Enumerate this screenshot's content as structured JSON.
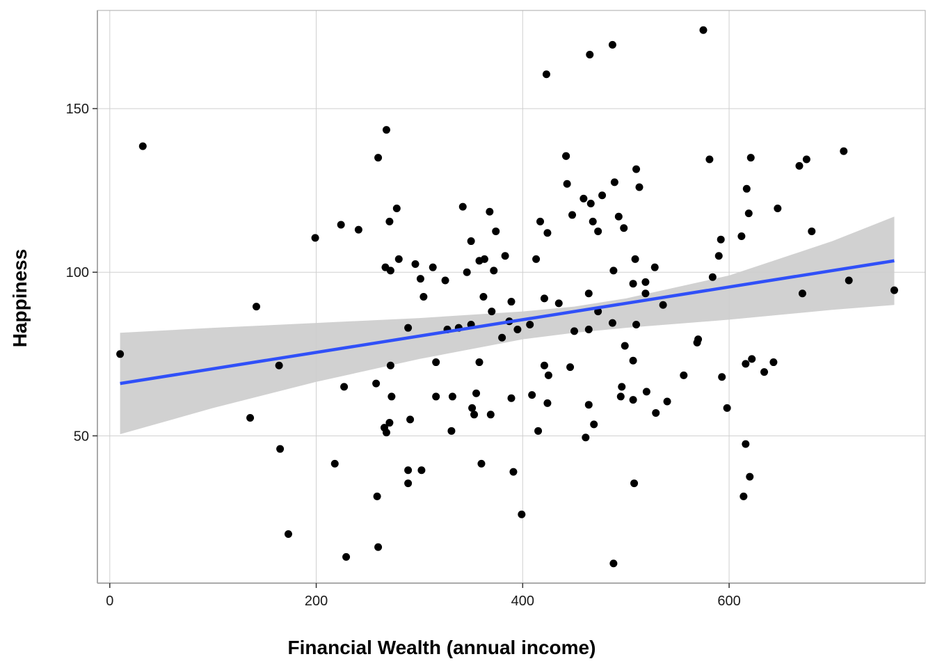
{
  "chart_data": {
    "type": "scatter",
    "title": "",
    "xlabel": "Financial Wealth (annual income)",
    "ylabel": "Happiness",
    "xlim": [
      -12,
      790
    ],
    "ylim": [
      5,
      180
    ],
    "x_ticks": [
      0,
      200,
      400,
      600
    ],
    "x_tick_labels": [
      "0",
      "200",
      "400",
      "600"
    ],
    "y_ticks": [
      50,
      100,
      150
    ],
    "y_tick_labels": [
      "50",
      "100",
      "150"
    ],
    "grid": true,
    "legend": "none",
    "colors": {
      "points": "#000000",
      "line": "#3050F8",
      "band": "#CCCCCC",
      "grid": "#CFCFCF",
      "frame": "#AAAAAA"
    },
    "series": [
      {
        "points": [
          [
            10,
            75
          ],
          [
            32,
            138.5
          ],
          [
            136,
            55.5
          ],
          [
            142,
            89.5
          ],
          [
            164,
            71.5
          ],
          [
            165,
            46
          ],
          [
            173,
            20
          ],
          [
            199,
            110.5
          ],
          [
            218,
            41.5
          ],
          [
            224,
            114.5
          ],
          [
            227,
            65
          ],
          [
            229,
            13
          ],
          [
            241,
            113
          ],
          [
            258,
            66
          ],
          [
            259,
            31.5
          ],
          [
            260,
            135
          ],
          [
            260,
            16
          ],
          [
            266,
            52.5
          ],
          [
            267,
            101.5
          ],
          [
            268,
            143.5
          ],
          [
            268,
            51
          ],
          [
            271,
            115.5
          ],
          [
            271,
            54
          ],
          [
            272,
            71.5
          ],
          [
            272,
            100.5
          ],
          [
            273,
            62
          ],
          [
            278,
            119.5
          ],
          [
            280,
            104
          ],
          [
            289,
            83
          ],
          [
            289,
            39.5
          ],
          [
            289,
            35.5
          ],
          [
            291,
            55
          ],
          [
            296,
            102.5
          ],
          [
            301,
            98
          ],
          [
            302,
            39.5
          ],
          [
            304,
            92.5
          ],
          [
            313,
            101.5
          ],
          [
            316,
            72.5
          ],
          [
            316,
            62
          ],
          [
            325,
            97.5
          ],
          [
            327,
            82.5
          ],
          [
            331,
            51.5
          ],
          [
            332,
            62
          ],
          [
            338,
            83
          ],
          [
            342,
            120
          ],
          [
            346,
            100
          ],
          [
            350,
            109.5
          ],
          [
            350,
            84
          ],
          [
            351,
            58.5
          ],
          [
            353,
            56.5
          ],
          [
            355,
            63
          ],
          [
            358,
            72.5
          ],
          [
            358,
            103.5
          ],
          [
            360,
            41.5
          ],
          [
            362,
            92.5
          ],
          [
            363,
            104
          ],
          [
            368,
            118.5
          ],
          [
            369,
            56.5
          ],
          [
            370,
            88
          ],
          [
            372,
            100.5
          ],
          [
            374,
            112.5
          ],
          [
            380,
            80
          ],
          [
            383,
            105
          ],
          [
            387,
            85
          ],
          [
            389,
            61.5
          ],
          [
            389,
            91
          ],
          [
            391,
            39
          ],
          [
            395,
            82.5
          ],
          [
            399,
            26
          ],
          [
            407,
            84
          ],
          [
            409,
            62.5
          ],
          [
            413,
            104
          ],
          [
            415,
            51.5
          ],
          [
            417,
            115.5
          ],
          [
            421,
            92
          ],
          [
            421,
            71.5
          ],
          [
            424,
            112
          ],
          [
            424,
            60
          ],
          [
            425,
            68.5
          ],
          [
            435,
            90.5
          ],
          [
            442,
            135.5
          ],
          [
            443,
            127
          ],
          [
            446,
            71
          ],
          [
            448,
            117.5
          ],
          [
            450,
            82
          ],
          [
            459,
            122.5
          ],
          [
            461,
            49.5
          ],
          [
            464,
            93.5
          ],
          [
            464,
            82.5
          ],
          [
            464,
            59.5
          ],
          [
            466,
            121
          ],
          [
            468,
            115.5
          ],
          [
            469,
            53.5
          ],
          [
            473,
            112.5
          ],
          [
            473,
            88
          ],
          [
            477,
            123.5
          ],
          [
            487,
            169.5
          ],
          [
            487,
            84.5
          ],
          [
            488,
            11
          ],
          [
            488,
            100.5
          ],
          [
            489,
            127.5
          ],
          [
            493,
            117
          ],
          [
            495,
            62
          ],
          [
            496,
            65
          ],
          [
            498,
            113.5
          ],
          [
            499,
            77.5
          ],
          [
            507,
            96.5
          ],
          [
            507,
            73
          ],
          [
            507,
            61
          ],
          [
            508,
            35.5
          ],
          [
            509,
            104
          ],
          [
            510,
            131.5
          ],
          [
            510,
            84
          ],
          [
            513,
            126
          ],
          [
            519,
            93.5
          ],
          [
            519,
            97
          ],
          [
            520,
            63.5
          ],
          [
            528,
            101.5
          ],
          [
            529,
            57
          ],
          [
            536,
            90
          ],
          [
            540,
            60.5
          ],
          [
            556,
            68.5
          ],
          [
            569,
            78.5
          ],
          [
            570,
            79.5
          ],
          [
            575,
            174
          ],
          [
            581,
            134.5
          ],
          [
            584,
            98.5
          ],
          [
            590,
            105
          ],
          [
            592,
            110
          ],
          [
            593,
            68
          ],
          [
            598,
            58.5
          ],
          [
            612,
            111
          ],
          [
            614,
            31.5
          ],
          [
            616,
            72
          ],
          [
            616,
            47.5
          ],
          [
            617,
            125.5
          ],
          [
            619,
            118
          ],
          [
            620,
            37.5
          ],
          [
            621,
            135
          ],
          [
            622,
            73.5
          ],
          [
            634,
            69.5
          ],
          [
            643,
            72.5
          ],
          [
            647,
            119.5
          ],
          [
            668,
            132.5
          ],
          [
            671,
            93.5
          ],
          [
            675,
            134.5
          ],
          [
            680,
            112.5
          ],
          [
            711,
            137
          ],
          [
            716,
            97.5
          ],
          [
            760,
            94.5
          ],
          [
            442,
            135.5
          ],
          [
            423,
            160.5
          ],
          [
            465,
            166.5
          ]
        ]
      }
    ],
    "fit_line": {
      "x": [
        10,
        760
      ],
      "y": [
        66,
        103.5
      ]
    },
    "confidence_band": {
      "x": [
        10,
        100,
        200,
        300,
        400,
        450,
        500,
        600,
        700,
        760
      ],
      "lower": [
        50.5,
        58.5,
        66.5,
        73.5,
        79.5,
        81.5,
        83,
        85.5,
        88.5,
        90
      ],
      "upper": [
        81.5,
        83,
        84.5,
        86,
        88,
        89.5,
        92,
        99,
        109.5,
        117
      ]
    }
  }
}
